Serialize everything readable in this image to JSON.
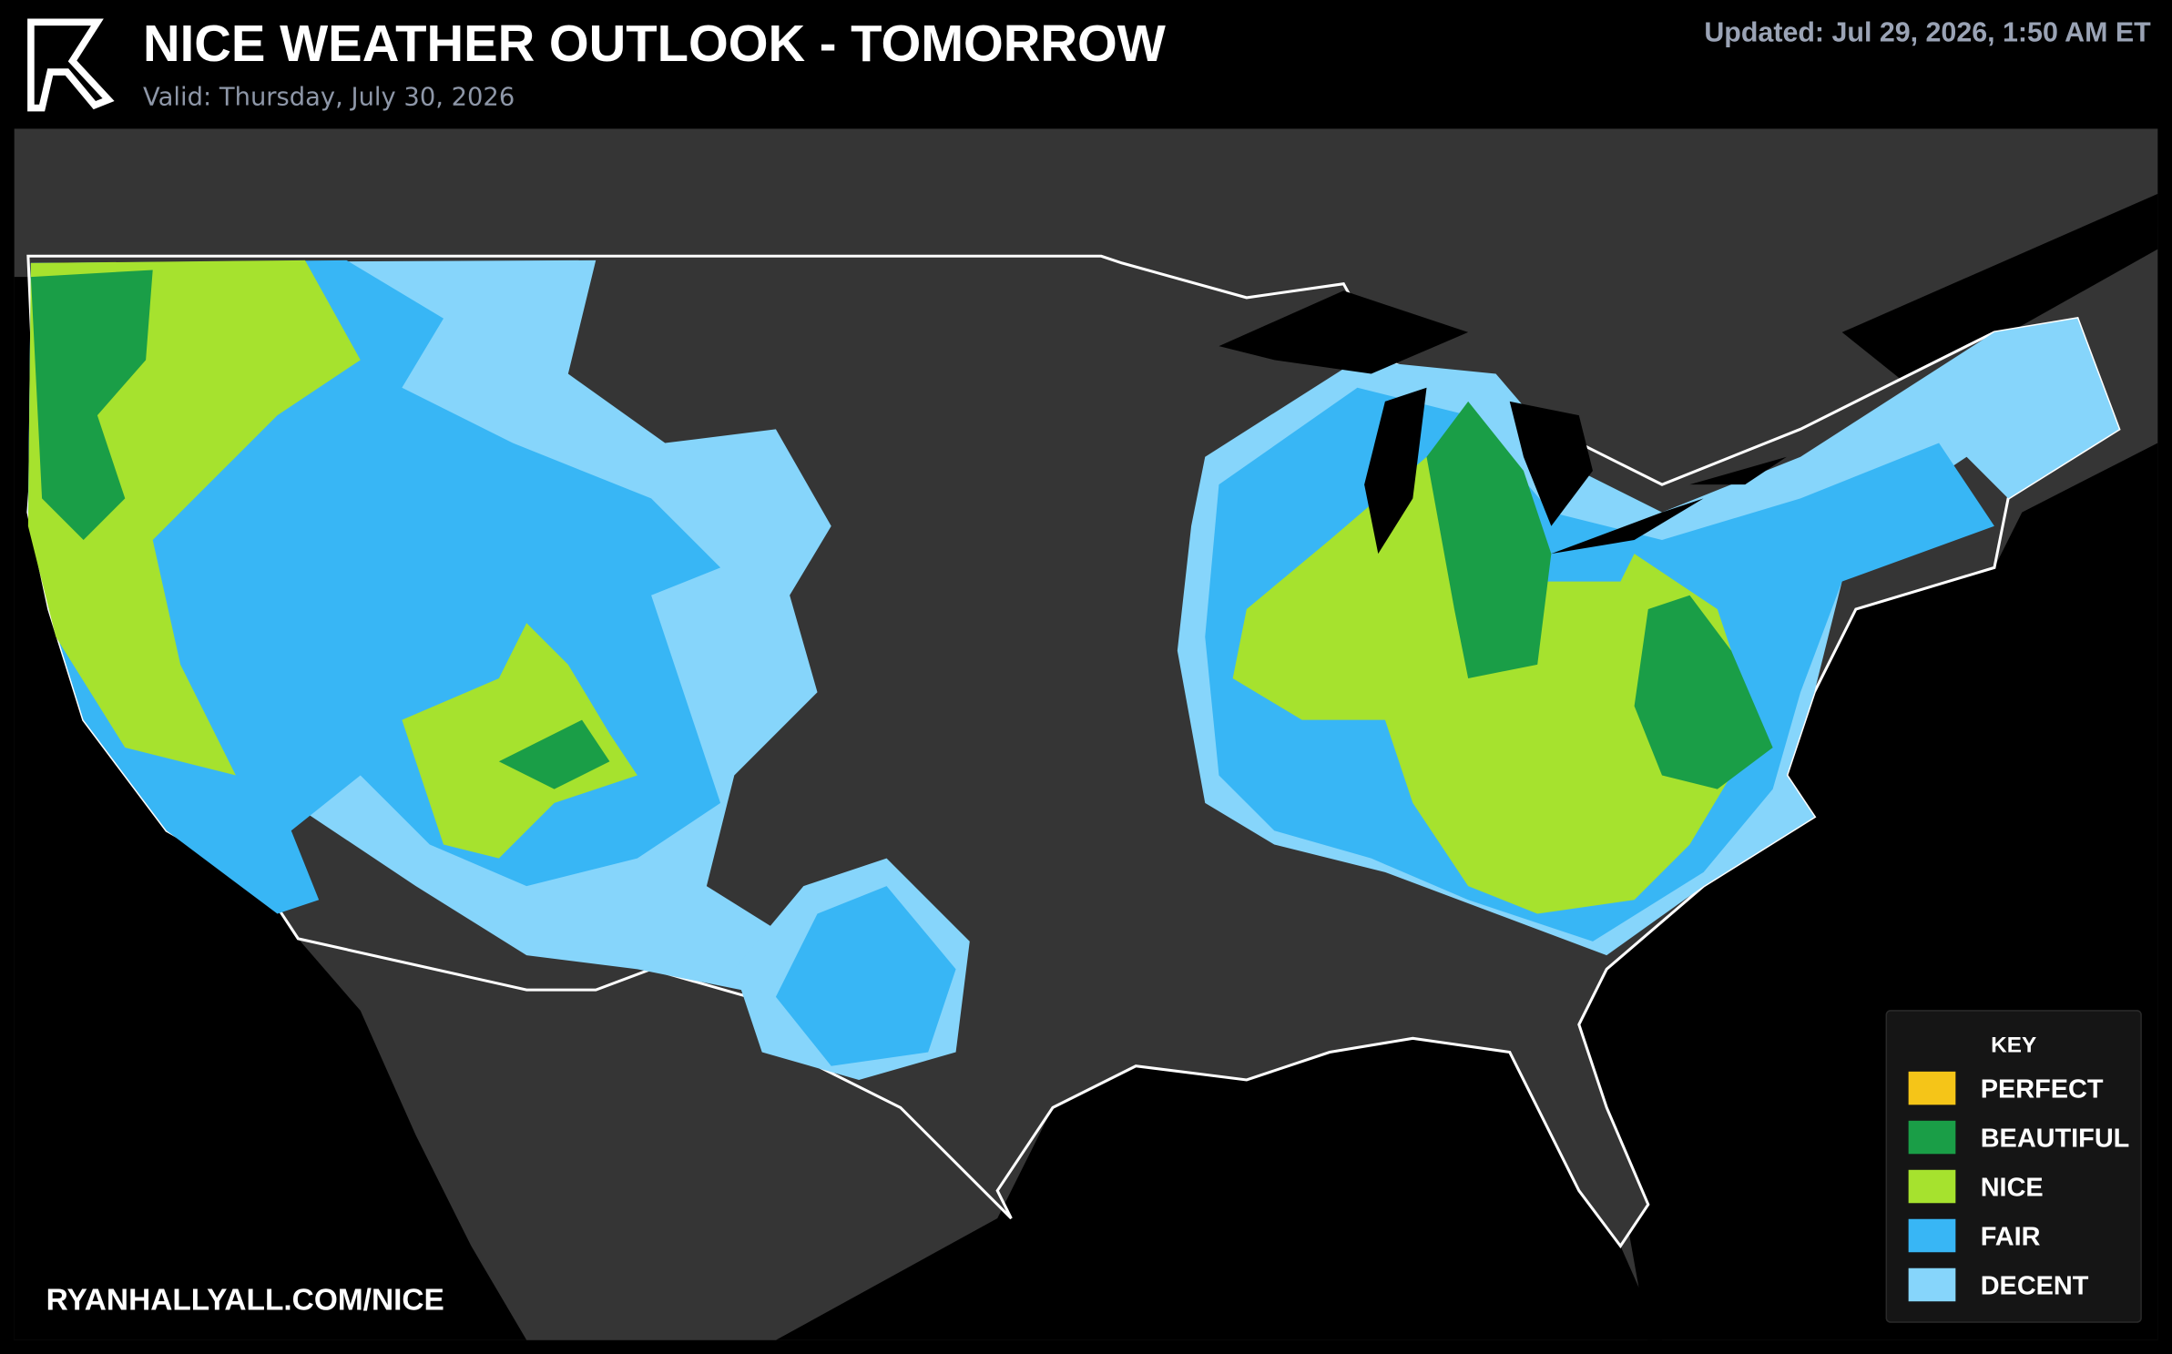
{
  "header": {
    "title": "NICE WEATHER OUTLOOK - TOMORROW",
    "subtitle": "Valid: Thursday, July 30, 2026",
    "updated": "Updated: Jul 29, 2026, 1:50 AM ET"
  },
  "legend": {
    "title": "KEY",
    "items": [
      {
        "label": "PERFECT",
        "color": "#f5c518"
      },
      {
        "label": "BEAUTIFUL",
        "color": "#1a9e47"
      },
      {
        "label": "NICE",
        "color": "#a6e22e"
      },
      {
        "label": "FAIR",
        "color": "#38b6f5"
      },
      {
        "label": "DECENT",
        "color": "#86d5fb"
      }
    ]
  },
  "footer": {
    "url": "RYANHALLYALL.COM/NICE"
  }
}
